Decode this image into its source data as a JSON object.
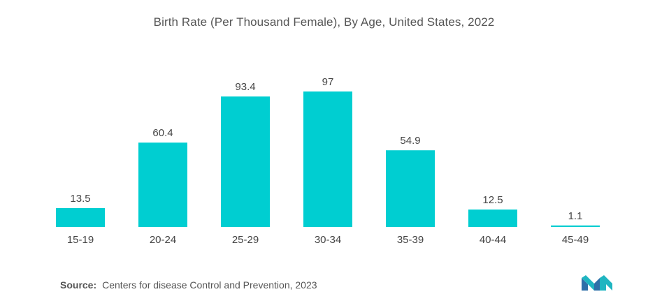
{
  "chart_data": {
    "type": "bar",
    "title": "Birth Rate (Per Thousand Female), By Age, United States, 2022",
    "categories": [
      "15-19",
      "20-24",
      "25-29",
      "30-34",
      "35-39",
      "40-44",
      "45-49"
    ],
    "values": [
      13.5,
      60.4,
      93.4,
      97,
      54.9,
      12.5,
      1.1
    ],
    "value_labels": [
      "13.5",
      "60.4",
      "93.4",
      "97",
      "54.9",
      "12.5",
      "1.1"
    ],
    "xlabel": "",
    "ylabel": "",
    "ylim": [
      0,
      100
    ],
    "grid": false,
    "legend": "none",
    "bar_color": "#00CED1"
  },
  "source": {
    "label": "Source:",
    "text": "Centers for disease Control and Prevention, 2023"
  },
  "colors": {
    "bar": "#00CED1",
    "logo_teal": "#1FB5C1",
    "logo_navy": "#2E6FA8"
  }
}
